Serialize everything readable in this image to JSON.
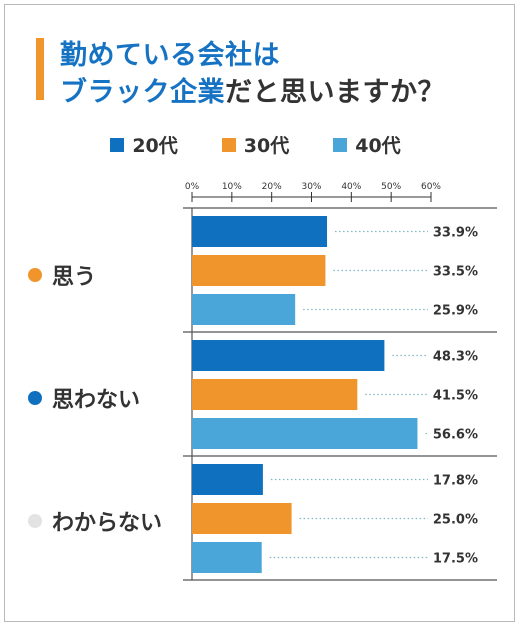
{
  "title": {
    "line1": "勤めている会社は",
    "line2_highlight": "ブラック企業",
    "line2_rest": "だと思いますか？"
  },
  "colors": {
    "accent": "#f0952b",
    "title_blue": "#1673c4",
    "series": [
      "#0f70c0",
      "#f0952b",
      "#4aa6d8"
    ],
    "category_dots": [
      "#f0952b",
      "#0f70c0",
      "#e3e3e3"
    ]
  },
  "chart_data": {
    "type": "bar",
    "orientation": "horizontal",
    "categories": [
      "思う",
      "思わない",
      "わからない"
    ],
    "series": [
      {
        "name": "20代",
        "values": [
          33.9,
          48.3,
          17.8
        ]
      },
      {
        "name": "30代",
        "values": [
          33.5,
          41.5,
          25.0
        ]
      },
      {
        "name": "40代",
        "values": [
          25.9,
          56.6,
          17.5
        ]
      }
    ],
    "x_ticks": [
      "0%",
      "10%",
      "20%",
      "30%",
      "40%",
      "50%",
      "60%"
    ],
    "xlim": [
      0,
      60
    ],
    "value_labels": [
      [
        "33.9%",
        "48.3%",
        "17.8%"
      ],
      [
        "33.5%",
        "41.5%",
        "25.0%"
      ],
      [
        "25.9%",
        "56.6%",
        "17.5%"
      ]
    ],
    "legend": "top-center"
  }
}
